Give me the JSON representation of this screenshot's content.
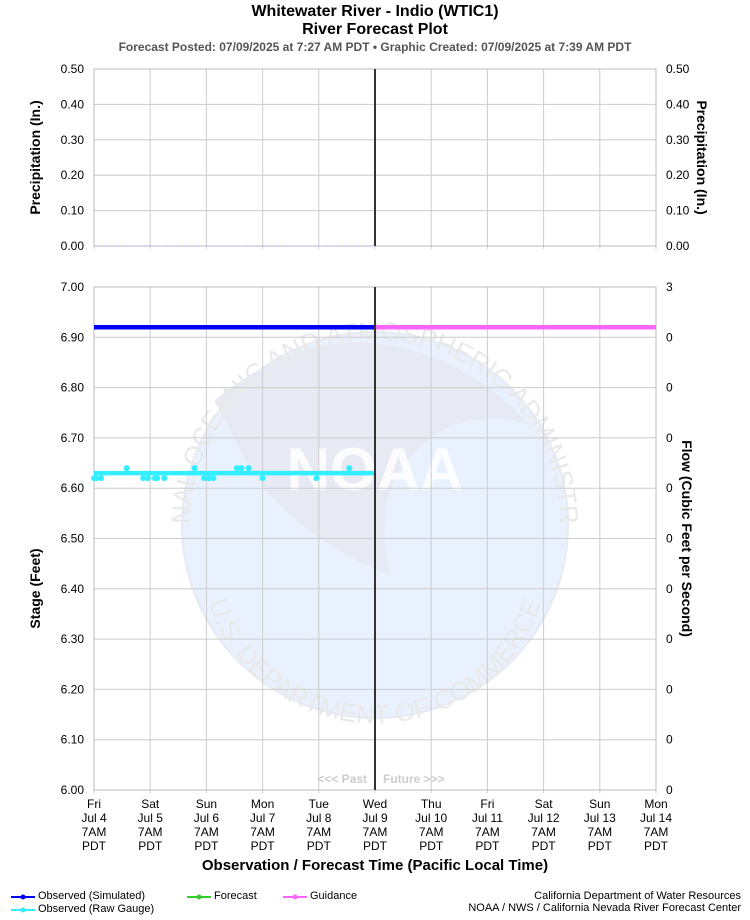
{
  "header": {
    "title": "Whitewater River - Indio (WTIC1)",
    "subtitle": "River Forecast Plot",
    "posted_line": "Forecast Posted: 07/09/2025 at 7:27 AM PDT  •  Graphic Created: 07/09/2025 at 7:39 AM PDT"
  },
  "chart_data": {
    "type": "line",
    "x_ticks": [
      {
        "day": "Fri",
        "date": "Jul 4",
        "time": "7AM",
        "tz": "PDT"
      },
      {
        "day": "Sat",
        "date": "Jul 5",
        "time": "7AM",
        "tz": "PDT"
      },
      {
        "day": "Sun",
        "date": "Jul 6",
        "time": "7AM",
        "tz": "PDT"
      },
      {
        "day": "Mon",
        "date": "Jul 7",
        "time": "7AM",
        "tz": "PDT"
      },
      {
        "day": "Tue",
        "date": "Jul 8",
        "time": "7AM",
        "tz": "PDT"
      },
      {
        "day": "Wed",
        "date": "Jul 9",
        "time": "7AM",
        "tz": "PDT"
      },
      {
        "day": "Thu",
        "date": "Jul 10",
        "time": "7AM",
        "tz": "PDT"
      },
      {
        "day": "Fri",
        "date": "Jul 11",
        "time": "7AM",
        "tz": "PDT"
      },
      {
        "day": "Sat",
        "date": "Jul 12",
        "time": "7AM",
        "tz": "PDT"
      },
      {
        "day": "Sun",
        "date": "Jul 13",
        "time": "7AM",
        "tz": "PDT"
      },
      {
        "day": "Mon",
        "date": "Jul 14",
        "time": "7AM",
        "tz": "PDT"
      }
    ],
    "x_range": [
      "2025-07-04T07:00",
      "2025-07-14T07:00"
    ],
    "current_time": "2025-07-09T07:00",
    "xlabel": "Observation / Forecast Time (Pacific Local Time)",
    "past_label": "<<< Past",
    "future_label": "Future >>>",
    "precip_panel": {
      "ylabel_left": "Precipitation (In.)",
      "ylabel_right": "Precipitation (In.)",
      "ylim": [
        0,
        0.5
      ],
      "ticks": [
        "0.50",
        "0.40",
        "0.30",
        "0.20",
        "0.10",
        "0.00"
      ],
      "series": [
        {
          "start": "2025-07-04T07:00",
          "end": "2025-07-09T07:00",
          "value": 0.0,
          "color": "#c8c8f0"
        }
      ]
    },
    "stage_panel": {
      "ylabel_left": "Stage (Feet)",
      "ylabel_right": "Flow (Cubic Feet per Second)",
      "ylim": [
        6.0,
        7.0
      ],
      "ticks_left": [
        "7.00",
        "6.90",
        "6.80",
        "6.70",
        "6.60",
        "6.50",
        "6.40",
        "6.30",
        "6.20",
        "6.10",
        "6.00"
      ],
      "ticks_right": [
        "3",
        "0",
        "0",
        "0",
        "0",
        "0",
        "0",
        "0",
        "0",
        "0",
        "0"
      ],
      "series": [
        {
          "key": "obs_sim",
          "start": "2025-07-04T07:00",
          "end": "2025-07-09T07:00",
          "value": 6.92,
          "color": "#0000ff"
        },
        {
          "key": "guidance",
          "start": "2025-07-09T07:00",
          "end": "2025-07-14T07:00",
          "value": 6.92,
          "color": "#ff66ff"
        },
        {
          "key": "obs_raw",
          "start": "2025-07-04T07:00",
          "end": "2025-07-09T07:00",
          "value": 6.63,
          "color": "#33eeff"
        }
      ],
      "raw_gauge_points": [
        [
          "2025-07-04T07:00",
          6.62
        ],
        [
          "2025-07-04T08:00",
          6.62
        ],
        [
          "2025-07-04T10:00",
          6.62
        ],
        [
          "2025-07-04T21:00",
          6.64
        ],
        [
          "2025-07-05T04:00",
          6.62
        ],
        [
          "2025-07-05T06:00",
          6.62
        ],
        [
          "2025-07-05T09:00",
          6.62
        ],
        [
          "2025-07-05T10:00",
          6.62
        ],
        [
          "2025-07-05T13:00",
          6.62
        ],
        [
          "2025-07-06T02:00",
          6.64
        ],
        [
          "2025-07-06T06:00",
          6.62
        ],
        [
          "2025-07-06T08:00",
          6.62
        ],
        [
          "2025-07-06T10:00",
          6.62
        ],
        [
          "2025-07-06T20:00",
          6.64
        ],
        [
          "2025-07-06T22:00",
          6.64
        ],
        [
          "2025-07-07T01:00",
          6.64
        ],
        [
          "2025-07-07T07:00",
          6.62
        ],
        [
          "2025-07-08T06:00",
          6.62
        ],
        [
          "2025-07-08T20:00",
          6.64
        ]
      ]
    },
    "legend": [
      {
        "label": "Observed (Simulated)",
        "color": "#0000ff"
      },
      {
        "label": "Observed (Raw Gauge)",
        "color": "#33eeff"
      },
      {
        "label": "Forecast",
        "color": "#33cc33"
      },
      {
        "label": "Guidance",
        "color": "#ff66ff"
      }
    ]
  },
  "watermark": {
    "logo_text": "NOAA",
    "ring_top": "NATIONAL OCEANIC AND ATMOSPHERIC ADMINISTRATION",
    "ring_bottom": "U.S. DEPARTMENT OF COMMERCE"
  },
  "credits": {
    "line1": "California Department of Water Resources",
    "line2": "NOAA / NWS / California Nevada River Forecast Center"
  }
}
